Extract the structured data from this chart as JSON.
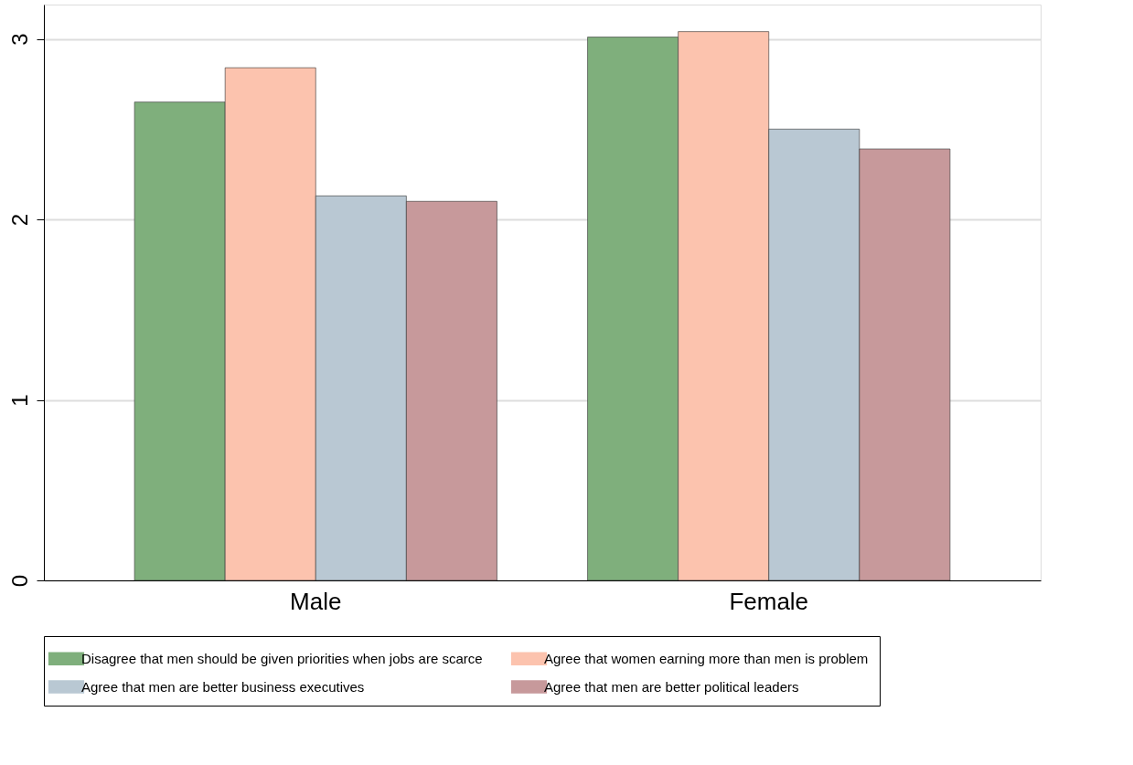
{
  "chart_data": {
    "type": "bar",
    "categories": [
      "Male",
      "Female"
    ],
    "series": [
      {
        "name": "Disagree that men should be given priorities when jobs are scarce",
        "color": "#7faf7c",
        "values": [
          2.65,
          3.01
        ]
      },
      {
        "name": "Agree that women earning more than men is problem",
        "color": "#fcc3ae",
        "values": [
          2.84,
          3.04
        ]
      },
      {
        "name": "Agree that men are better business executives",
        "color": "#b9c8d3",
        "values": [
          2.13,
          2.5
        ]
      },
      {
        "name": "Agree that men are better political leaders",
        "color": "#c7999b",
        "values": [
          2.1,
          2.39
        ]
      }
    ],
    "ylim": [
      0,
      3.19
    ],
    "yticks": [
      0,
      1,
      2,
      3
    ],
    "grid": "y",
    "legend": "bottom"
  }
}
